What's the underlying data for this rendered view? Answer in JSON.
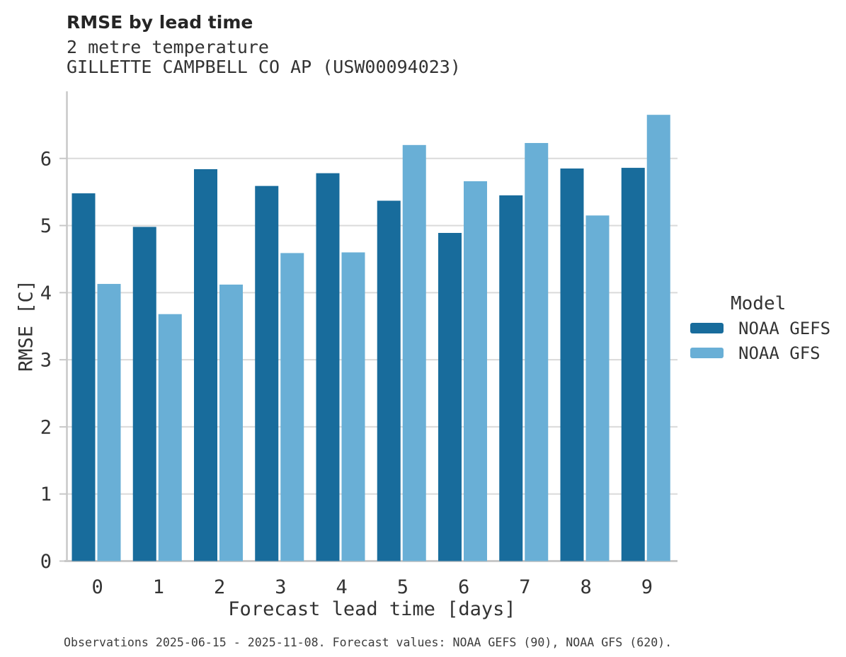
{
  "page": {
    "background": "#ffffff"
  },
  "colors": {
    "grid": "#dadada",
    "axis": "#c8c8c8",
    "tick_text": "#333333",
    "title_text": "#252525",
    "footer_text": "#3d3d3d"
  },
  "chart_data": {
    "type": "bar",
    "title": "RMSE by lead time",
    "subtitle": [
      "2 metre temperature",
      "GILLETTE CAMPBELL CO AP (USW00094023)"
    ],
    "xlabel": "Forecast lead time [days]",
    "ylabel": "RMSE [C]",
    "categories": [
      "0",
      "1",
      "2",
      "3",
      "4",
      "5",
      "6",
      "7",
      "8",
      "9"
    ],
    "series": [
      {
        "name": "NOAA GEFS",
        "color": "#186c9c",
        "values": [
          5.48,
          4.98,
          5.84,
          5.59,
          5.78,
          5.37,
          4.89,
          5.45,
          5.85,
          5.86
        ]
      },
      {
        "name": "NOAA GFS",
        "color": "#69afd6",
        "values": [
          4.13,
          3.68,
          4.12,
          4.59,
          4.6,
          6.2,
          5.66,
          6.23,
          5.15,
          6.65
        ]
      }
    ],
    "ylim": [
      0,
      7
    ],
    "yticks": [
      0,
      1,
      2,
      3,
      4,
      5,
      6
    ],
    "grid": "horizontal",
    "legend_title": "Model",
    "legend_position": "right",
    "annotation": "Observations 2025-06-15 - 2025-11-08. Forecast values: NOAA GEFS (90), NOAA GFS (620)."
  }
}
